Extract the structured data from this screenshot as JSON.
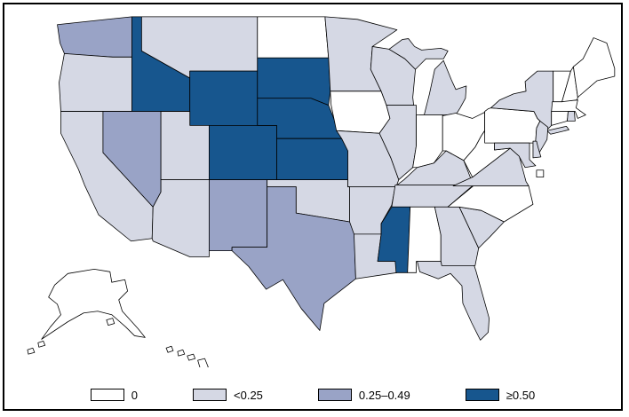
{
  "figure": {
    "type": "us-state-choropleth",
    "region": "United States",
    "background": "#ffffff",
    "frame_color": "#000000"
  },
  "legend": {
    "items": [
      {
        "key": "zero",
        "label": "0",
        "color": "#ffffff"
      },
      {
        "key": "lt025",
        "label": "<0.25",
        "color": "#d5d8e4"
      },
      {
        "key": "mid",
        "label": "0.25–0.49",
        "color": "#99a3c6"
      },
      {
        "key": "ge050",
        "label": "≥0.50",
        "color": "#17568e"
      }
    ]
  },
  "map": {
    "stroke": "#000000",
    "states": [
      {
        "id": "WA",
        "name": "Washington",
        "category": "mid"
      },
      {
        "id": "OR",
        "name": "Oregon",
        "category": "lt025"
      },
      {
        "id": "CA",
        "name": "California",
        "category": "lt025"
      },
      {
        "id": "NV",
        "name": "Nevada",
        "category": "mid"
      },
      {
        "id": "ID",
        "name": "Idaho",
        "category": "ge050"
      },
      {
        "id": "MT",
        "name": "Montana",
        "category": "lt025"
      },
      {
        "id": "WY",
        "name": "Wyoming",
        "category": "ge050"
      },
      {
        "id": "UT",
        "name": "Utah",
        "category": "lt025"
      },
      {
        "id": "CO",
        "name": "Colorado",
        "category": "ge050"
      },
      {
        "id": "AZ",
        "name": "Arizona",
        "category": "lt025"
      },
      {
        "id": "NM",
        "name": "New Mexico",
        "category": "mid"
      },
      {
        "id": "ND",
        "name": "North Dakota",
        "category": "zero"
      },
      {
        "id": "SD",
        "name": "South Dakota",
        "category": "ge050"
      },
      {
        "id": "NE",
        "name": "Nebraska",
        "category": "ge050"
      },
      {
        "id": "KS",
        "name": "Kansas",
        "category": "ge050"
      },
      {
        "id": "OK",
        "name": "Oklahoma",
        "category": "lt025"
      },
      {
        "id": "TX",
        "name": "Texas",
        "category": "mid"
      },
      {
        "id": "MN",
        "name": "Minnesota",
        "category": "lt025"
      },
      {
        "id": "IA",
        "name": "Iowa",
        "category": "zero"
      },
      {
        "id": "MO",
        "name": "Missouri",
        "category": "lt025"
      },
      {
        "id": "AR",
        "name": "Arkansas",
        "category": "lt025"
      },
      {
        "id": "LA",
        "name": "Louisiana",
        "category": "lt025"
      },
      {
        "id": "WI",
        "name": "Wisconsin",
        "category": "lt025"
      },
      {
        "id": "IL",
        "name": "Illinois",
        "category": "lt025"
      },
      {
        "id": "MI",
        "name": "Michigan",
        "category": "lt025"
      },
      {
        "id": "IN",
        "name": "Indiana",
        "category": "zero"
      },
      {
        "id": "OH",
        "name": "Ohio",
        "category": "zero"
      },
      {
        "id": "KY",
        "name": "Kentucky",
        "category": "lt025"
      },
      {
        "id": "TN",
        "name": "Tennessee",
        "category": "lt025"
      },
      {
        "id": "MS",
        "name": "Mississippi",
        "category": "ge050"
      },
      {
        "id": "AL",
        "name": "Alabama",
        "category": "zero"
      },
      {
        "id": "GA",
        "name": "Georgia",
        "category": "lt025"
      },
      {
        "id": "FL",
        "name": "Florida",
        "category": "lt025"
      },
      {
        "id": "SC",
        "name": "South Carolina",
        "category": "lt025"
      },
      {
        "id": "NC",
        "name": "North Carolina",
        "category": "zero"
      },
      {
        "id": "VA",
        "name": "Virginia",
        "category": "lt025"
      },
      {
        "id": "WV",
        "name": "West Virginia",
        "category": "zero"
      },
      {
        "id": "PA",
        "name": "Pennsylvania",
        "category": "zero"
      },
      {
        "id": "NY",
        "name": "New York",
        "category": "lt025"
      },
      {
        "id": "NJ",
        "name": "New Jersey",
        "category": "lt025"
      },
      {
        "id": "MD",
        "name": "Maryland",
        "category": "lt025"
      },
      {
        "id": "DE",
        "name": "Delaware",
        "category": "lt025"
      },
      {
        "id": "CT",
        "name": "Connecticut",
        "category": "zero"
      },
      {
        "id": "MA",
        "name": "Massachusetts",
        "category": "zero"
      },
      {
        "id": "RI",
        "name": "Rhode Island",
        "category": "lt025"
      },
      {
        "id": "VT",
        "name": "Vermont",
        "category": "zero"
      },
      {
        "id": "NH",
        "name": "New Hampshire",
        "category": "zero"
      },
      {
        "id": "ME",
        "name": "Maine",
        "category": "zero"
      },
      {
        "id": "AK",
        "name": "Alaska",
        "category": "zero"
      },
      {
        "id": "HI",
        "name": "Hawaii",
        "category": "zero"
      },
      {
        "id": "DC",
        "name": "District of Columbia",
        "category": "zero"
      }
    ]
  }
}
